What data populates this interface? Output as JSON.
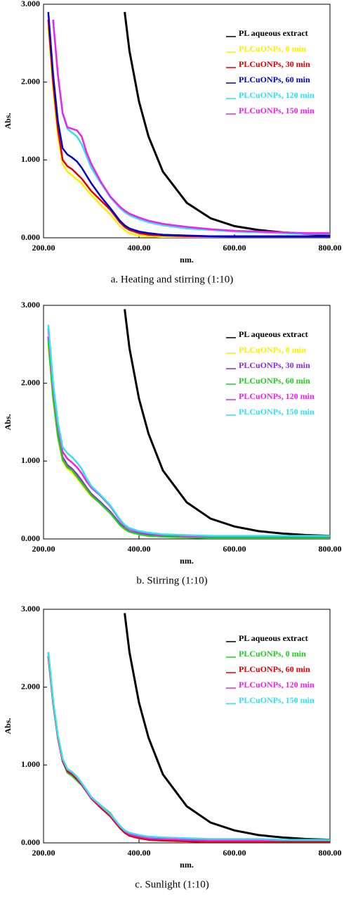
{
  "chart_data": [
    {
      "type": "line",
      "caption": "a.   Heating and stirring (1:10)",
      "xlabel": "nm.",
      "ylabel": "Abs.",
      "xlim": [
        200,
        800
      ],
      "ylim": [
        0,
        3
      ],
      "xticks": [
        {
          "value": 200,
          "label": "200.00"
        },
        {
          "value": 400,
          "label": "400.00"
        },
        {
          "value": 600,
          "label": "600.00"
        },
        {
          "value": 800,
          "label": "800.00"
        }
      ],
      "yticks": [
        {
          "value": 0,
          "label": "0.000"
        },
        {
          "value": 1,
          "label": "1.000"
        },
        {
          "value": 2,
          "label": "2.000"
        },
        {
          "value": 3,
          "label": "3.000"
        }
      ],
      "x": [
        210,
        220,
        230,
        240,
        250,
        260,
        270,
        280,
        290,
        300,
        320,
        340,
        360,
        370,
        380,
        400,
        420,
        450,
        500,
        550,
        600,
        650,
        700,
        750,
        800
      ],
      "series": [
        {
          "name": "PL aqueous extract",
          "color": "#000000",
          "values": [
            null,
            null,
            null,
            null,
            null,
            null,
            null,
            null,
            null,
            null,
            null,
            null,
            null,
            2.9,
            2.4,
            1.75,
            1.3,
            0.85,
            0.45,
            0.25,
            0.15,
            0.1,
            0.07,
            0.05,
            0.04
          ]
        },
        {
          "name": "PLCuONPs, 0 min",
          "color": "#ffee00",
          "values": [
            2.7,
            1.9,
            1.3,
            0.95,
            0.85,
            0.8,
            0.75,
            0.7,
            0.62,
            0.55,
            0.42,
            0.3,
            0.15,
            0.1,
            0.06,
            0.03,
            0.02,
            0.01,
            0,
            0,
            0,
            0,
            0,
            0,
            0
          ]
        },
        {
          "name": "PLCuONPs, 30 min",
          "color": "#e00000",
          "values": [
            2.8,
            2.0,
            1.4,
            1.0,
            0.92,
            0.88,
            0.82,
            0.76,
            0.68,
            0.6,
            0.48,
            0.36,
            0.2,
            0.14,
            0.1,
            0.06,
            0.04,
            0.03,
            0.02,
            0.015,
            0.01,
            0.01,
            0.01,
            0.01,
            0.01
          ]
        },
        {
          "name": "PLCuONPs, 60 min",
          "color": "#0000cc",
          "values": [
            2.9,
            2.1,
            1.5,
            1.15,
            1.07,
            1.03,
            0.98,
            0.9,
            0.8,
            0.7,
            0.53,
            0.38,
            0.22,
            0.16,
            0.12,
            0.08,
            0.06,
            0.04,
            0.03,
            0.02,
            0.02,
            0.02,
            0.02,
            0.02,
            0.02
          ]
        },
        {
          "name": "PLCuONPs, 120 min",
          "color": "#33e0f0",
          "values": [
            null,
            2.8,
            2.1,
            1.6,
            1.4,
            1.35,
            1.3,
            1.2,
            1.05,
            0.9,
            0.7,
            0.52,
            0.38,
            0.33,
            0.29,
            0.24,
            0.2,
            0.16,
            0.12,
            0.1,
            0.08,
            0.07,
            0.06,
            0.05,
            0.05
          ]
        },
        {
          "name": "PLCuONPs, 150 min",
          "color": "#ee22ee",
          "values": [
            null,
            2.8,
            2.1,
            1.6,
            1.42,
            1.4,
            1.38,
            1.3,
            1.1,
            0.95,
            0.72,
            0.53,
            0.4,
            0.35,
            0.31,
            0.26,
            0.22,
            0.18,
            0.14,
            0.11,
            0.09,
            0.08,
            0.07,
            0.06,
            0.06
          ]
        }
      ]
    },
    {
      "type": "line",
      "caption": "b.   Stirring (1:10)",
      "xlabel": "nm.",
      "ylabel": "Abs.",
      "xlim": [
        200,
        800
      ],
      "ylim": [
        0,
        3
      ],
      "xticks": [
        {
          "value": 200,
          "label": "200.00"
        },
        {
          "value": 400,
          "label": "400.00"
        },
        {
          "value": 600,
          "label": "600.00"
        },
        {
          "value": 800,
          "label": "800.00"
        }
      ],
      "yticks": [
        {
          "value": 0,
          "label": "0.000"
        },
        {
          "value": 1,
          "label": "1.000"
        },
        {
          "value": 2,
          "label": "2.000"
        },
        {
          "value": 3,
          "label": "3.000"
        }
      ],
      "x": [
        210,
        220,
        230,
        240,
        250,
        260,
        270,
        280,
        290,
        300,
        320,
        340,
        360,
        370,
        380,
        400,
        420,
        450,
        500,
        550,
        600,
        650,
        700,
        750,
        800
      ],
      "series": [
        {
          "name": "PL aqueous extract",
          "color": "#000000",
          "values": [
            null,
            null,
            null,
            null,
            null,
            null,
            null,
            null,
            null,
            null,
            null,
            null,
            null,
            2.95,
            2.45,
            1.8,
            1.35,
            0.88,
            0.47,
            0.26,
            0.16,
            0.1,
            0.07,
            0.05,
            0.04
          ]
        },
        {
          "name": "PLCuONPs, 0 min",
          "color": "#ffee00",
          "values": [
            2.5,
            1.8,
            1.3,
            1.0,
            0.9,
            0.85,
            0.78,
            0.7,
            0.62,
            0.55,
            0.45,
            0.33,
            0.18,
            0.12,
            0.09,
            0.06,
            0.04,
            0.03,
            0.02,
            0.02,
            0.02,
            0.02,
            0.02,
            0.02,
            0.02
          ]
        },
        {
          "name": "PLCuONPs, 30 min",
          "color": "#8a2be2",
          "values": [
            2.6,
            1.85,
            1.35,
            1.05,
            0.95,
            0.9,
            0.83,
            0.75,
            0.66,
            0.58,
            0.47,
            0.35,
            0.2,
            0.14,
            0.1,
            0.07,
            0.05,
            0.04,
            0.03,
            0.02,
            0.02,
            0.02,
            0.02,
            0.02,
            0.02
          ]
        },
        {
          "name": "PLCuONPs, 60 min",
          "color": "#22cc22",
          "values": [
            2.55,
            1.82,
            1.32,
            1.02,
            0.92,
            0.88,
            0.8,
            0.72,
            0.64,
            0.56,
            0.45,
            0.33,
            0.18,
            0.13,
            0.09,
            0.06,
            0.04,
            0.03,
            0.02,
            0.01,
            0.01,
            0.01,
            0.01,
            0.01,
            0.01
          ]
        },
        {
          "name": "PLCuONPs, 120 min",
          "color": "#ee22ee",
          "values": [
            2.7,
            1.95,
            1.45,
            1.12,
            1.03,
            0.98,
            0.92,
            0.84,
            0.74,
            0.66,
            0.55,
            0.42,
            0.24,
            0.17,
            0.13,
            0.09,
            0.07,
            0.05,
            0.04,
            0.03,
            0.03,
            0.03,
            0.03,
            0.03,
            0.03
          ]
        },
        {
          "name": "PLCuONPs, 150 min",
          "color": "#33e0f0",
          "values": [
            2.75,
            2.0,
            1.5,
            1.18,
            1.1,
            1.05,
            0.98,
            0.9,
            0.78,
            0.68,
            0.56,
            0.43,
            0.25,
            0.18,
            0.14,
            0.1,
            0.08,
            0.06,
            0.05,
            0.04,
            0.04,
            0.04,
            0.04,
            0.04,
            0.04
          ]
        }
      ]
    },
    {
      "type": "line",
      "caption": "c.   Sunlight (1:10)",
      "xlabel": "nm.",
      "ylabel": "Abs.",
      "xlim": [
        200,
        800
      ],
      "ylim": [
        0,
        3
      ],
      "xticks": [
        {
          "value": 200,
          "label": "200.00"
        },
        {
          "value": 400,
          "label": "400.00"
        },
        {
          "value": 600,
          "label": "600.00"
        },
        {
          "value": 800,
          "label": "800.00"
        }
      ],
      "yticks": [
        {
          "value": 0,
          "label": "0.000"
        },
        {
          "value": 1,
          "label": "1.000"
        },
        {
          "value": 2,
          "label": "2.000"
        },
        {
          "value": 3,
          "label": "3.000"
        }
      ],
      "x": [
        210,
        220,
        230,
        240,
        250,
        260,
        270,
        280,
        290,
        300,
        320,
        340,
        360,
        370,
        380,
        400,
        420,
        450,
        500,
        550,
        600,
        650,
        700,
        750,
        800
      ],
      "series": [
        {
          "name": "PL aqueous extract",
          "color": "#000000",
          "values": [
            null,
            null,
            null,
            null,
            null,
            null,
            null,
            null,
            null,
            null,
            null,
            null,
            null,
            2.95,
            2.45,
            1.8,
            1.35,
            0.88,
            0.47,
            0.26,
            0.16,
            0.1,
            0.07,
            0.05,
            0.04
          ]
        },
        {
          "name": "PLCuONPs, 0 min",
          "color": "#22cc22",
          "values": [
            2.4,
            1.8,
            1.35,
            1.05,
            0.9,
            0.86,
            0.8,
            0.74,
            0.66,
            0.58,
            0.48,
            0.38,
            0.2,
            0.13,
            0.09,
            0.06,
            0.04,
            0.03,
            0.02,
            0.01,
            0.01,
            0.01,
            0.01,
            0.01,
            0.01
          ]
        },
        {
          "name": "PLCuONPs, 60 min",
          "color": "#e00000",
          "values": [
            2.4,
            1.8,
            1.35,
            1.05,
            0.92,
            0.88,
            0.82,
            0.75,
            0.66,
            0.57,
            0.45,
            0.34,
            0.19,
            0.13,
            0.09,
            0.06,
            0.04,
            0.03,
            0.02,
            0.01,
            0.01,
            0.01,
            0.01,
            0.01,
            0.01
          ]
        },
        {
          "name": "PLCuONPs, 120 min",
          "color": "#ee22ee",
          "values": [
            2.45,
            1.82,
            1.37,
            1.07,
            0.94,
            0.9,
            0.84,
            0.76,
            0.67,
            0.58,
            0.47,
            0.36,
            0.21,
            0.15,
            0.11,
            0.08,
            0.06,
            0.05,
            0.04,
            0.03,
            0.03,
            0.03,
            0.03,
            0.03,
            0.03
          ]
        },
        {
          "name": "PLCuONPs, 150 min",
          "color": "#33e0f0",
          "values": [
            2.45,
            1.83,
            1.38,
            1.08,
            0.95,
            0.91,
            0.85,
            0.77,
            0.68,
            0.59,
            0.48,
            0.37,
            0.22,
            0.16,
            0.13,
            0.1,
            0.08,
            0.07,
            0.06,
            0.05,
            0.05,
            0.05,
            0.04,
            0.04,
            0.04
          ]
        }
      ]
    }
  ]
}
